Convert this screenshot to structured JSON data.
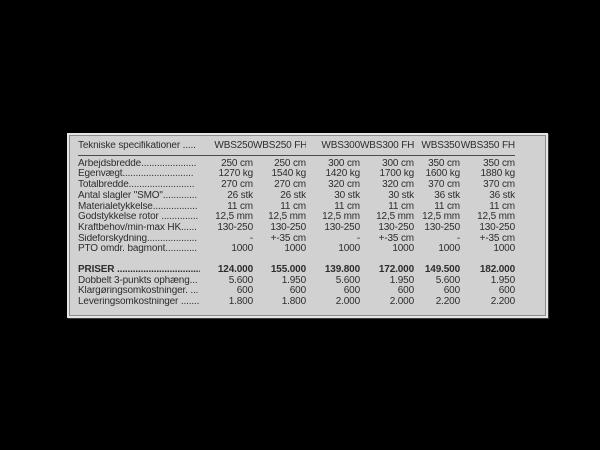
{
  "page": {
    "background": "#000000"
  },
  "panel": {
    "background": "#d1d1d1",
    "frame_light": "#e5e5e5",
    "frame_dark": "#8d8d8d",
    "text_color": "#2d2d2d",
    "rule_color": "#4a4a4a"
  },
  "table": {
    "header": {
      "label": "Tekniske specifikationer .....",
      "columns": [
        "WBS250",
        "WBS250 FH",
        "WBS300",
        "WBS300 FH",
        "WBS350",
        "WBS350 FH"
      ]
    },
    "spec_rows": [
      {
        "label": "Arbejdsbredde.....................",
        "values": [
          "250 cm",
          "250 cm",
          "300 cm",
          "300 cm",
          "350 cm",
          "350 cm"
        ]
      },
      {
        "label": "Egenvægt...........................",
        "values": [
          "1270 kg",
          "1540 kg",
          "1420 kg",
          "1700 kg",
          "1600 kg",
          "1880 kg"
        ]
      },
      {
        "label": "Totalbredde.........................",
        "values": [
          "270 cm",
          "270 cm",
          "320 cm",
          "320 cm",
          "370 cm",
          "370 cm"
        ]
      },
      {
        "label": "Antal slagler \"SMO\".............",
        "values": [
          "26 stk",
          "26 stk",
          "30 stk",
          "30 stk",
          "36 stk",
          "36 stk"
        ]
      },
      {
        "label": "Materialetykkelse.................",
        "values": [
          "11 cm",
          "11 cm",
          "11 cm",
          "11 cm",
          "11 cm",
          "11 cm"
        ]
      },
      {
        "label": "Godstykkelse rotor ..............",
        "values": [
          "12,5 mm",
          "12,5 mm",
          "12,5 mm",
          "12,5 mm",
          "12,5 mm",
          "12,5 mm"
        ]
      },
      {
        "label": "Kraftbehov/min-max HK......",
        "values": [
          "130-250",
          "130-250",
          "130-250",
          "130-250",
          "130-250",
          "130-250"
        ]
      },
      {
        "label": "Sideforskydning...................",
        "values": [
          "-",
          "+-35 cm",
          "-",
          "+-35 cm",
          "-",
          "+-35 cm"
        ]
      },
      {
        "label": "PTO omdr. bagmont............",
        "values": [
          "1000",
          "1000",
          "1000",
          "1000",
          "1000",
          "1000"
        ]
      }
    ],
    "price_rows": [
      {
        "label": "PRISER ................................",
        "bold": true,
        "values": [
          "124.000",
          "155.000",
          "139.800",
          "172.000",
          "149.500",
          "182.000"
        ]
      },
      {
        "label": "Dobbelt 3-punkts ophæng...",
        "values": [
          "5.600",
          "1.950",
          "5.600",
          "1.950",
          "5.600",
          "1.950"
        ]
      },
      {
        "label": "Klargøringsomkostninger. ...",
        "values": [
          "600",
          "600",
          "600",
          "600",
          "600",
          "600"
        ]
      },
      {
        "label": "Leveringsomkostninger .......",
        "values": [
          "1.800",
          "1.800",
          "2.000",
          "2.000",
          "2.200",
          "2.200"
        ]
      }
    ]
  }
}
